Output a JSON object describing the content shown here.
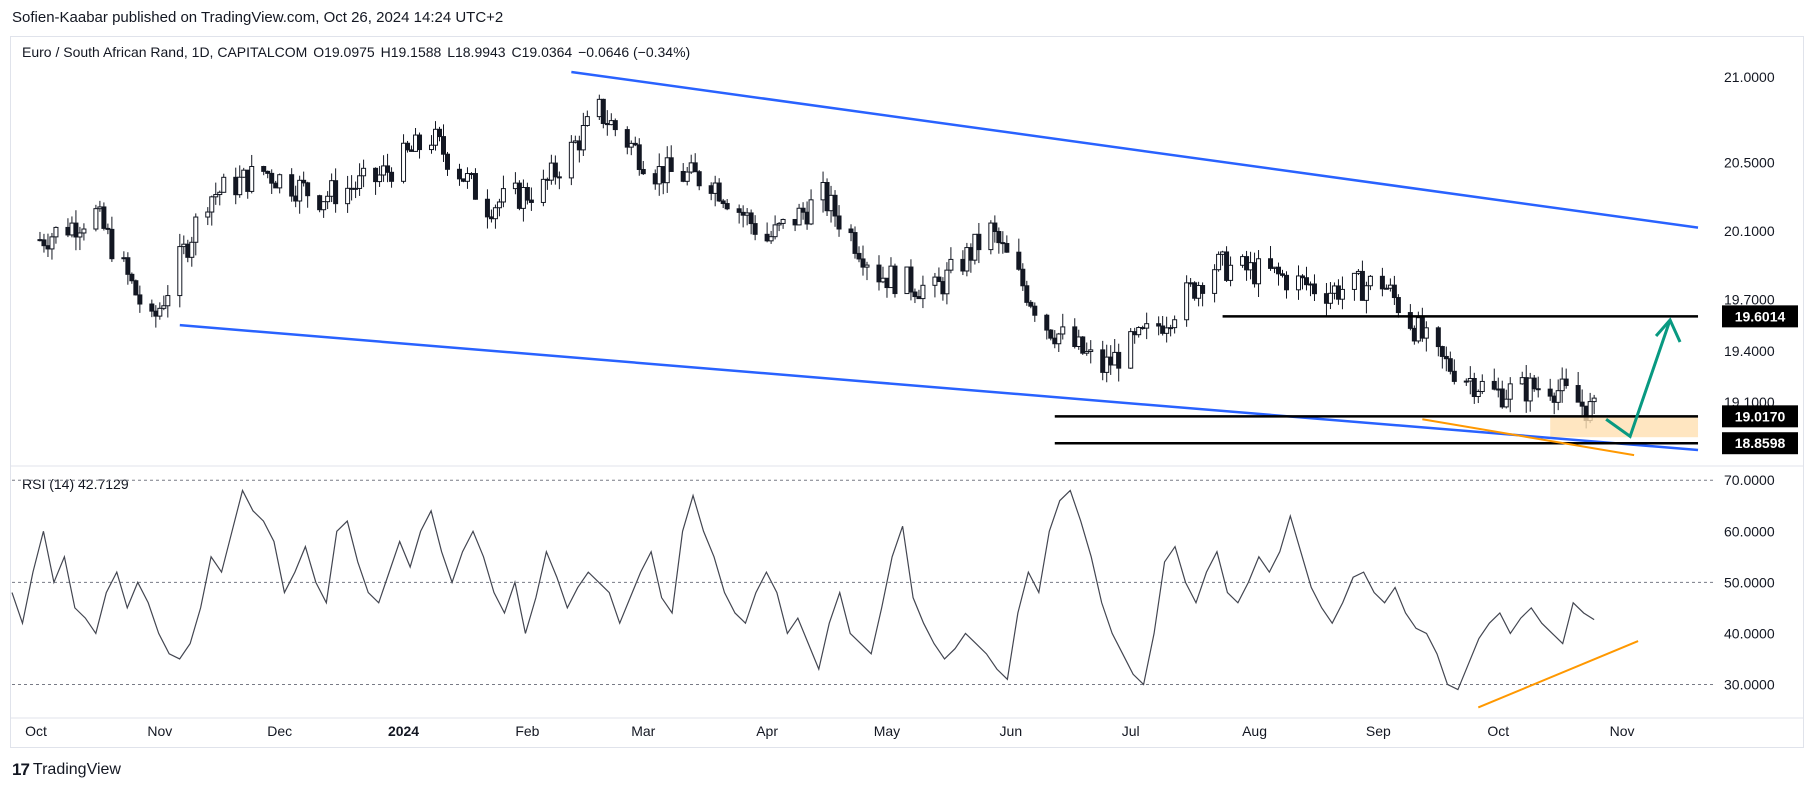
{
  "header": {
    "publisher": "Sofien-Kaabar published on TradingView.com, Oct 26, 2024 14:24 UTC+2"
  },
  "legend": {
    "symbol": "Euro / South African Rand, 1D, CAPITALCOM",
    "open": "O19.0975",
    "high": "H19.1588",
    "low": "L18.9943",
    "close": "C19.0364",
    "change": "−0.0646 (−0.34%)"
  },
  "rsi_legend": {
    "label": "RSI (14)",
    "value": "42.7129"
  },
  "footer": {
    "brand": "TradingView",
    "logo_icon": "tradingview-logo-icon"
  },
  "colors": {
    "up": "#131722",
    "down": "#131722",
    "channel": "#2962ff",
    "orange": "#ff9800",
    "arrow": "#089981",
    "zone": "#ffe0b2",
    "rsi_line": "#434651"
  },
  "chart_data": [
    {
      "type": "candlestick",
      "title": "Euro / South African Rand, 1D, CAPITALCOM",
      "x_ticks": [
        "Oct",
        "Nov",
        "Dec",
        "2024",
        "Feb",
        "Mar",
        "Apr",
        "May",
        "Jun",
        "Jul",
        "Aug",
        "Sep",
        "Oct",
        "Nov"
      ],
      "y_ticks": [
        "21.0000",
        "20.5000",
        "20.1000",
        "19.7000",
        "19.4000",
        "19.1000"
      ],
      "ylim": [
        18.75,
        21.1
      ],
      "price_labels": [
        "19.6014",
        "19.0170",
        "18.8598"
      ],
      "series": [
        {
          "name": "",
          "x": [
            "2023-10-02",
            "2023-10-16",
            "2023-10-30",
            "2023-11-13",
            "2023-11-27",
            "2023-12-11",
            "2023-12-25",
            "2024-01-08",
            "2024-01-22",
            "2024-02-05",
            "2024-02-19",
            "2024-03-04",
            "2024-03-18",
            "2024-04-01",
            "2024-04-15",
            "2024-04-29",
            "2024-05-13",
            "2024-05-27",
            "2024-06-10",
            "2024-06-24",
            "2024-07-08",
            "2024-07-22",
            "2024-08-05",
            "2024-08-19",
            "2024-09-02",
            "2024-09-16",
            "2024-09-30",
            "2024-10-14",
            "2024-10-25"
          ],
          "close": [
            20.05,
            20.2,
            19.55,
            20.3,
            20.45,
            20.3,
            20.4,
            20.65,
            20.25,
            20.35,
            20.8,
            20.45,
            20.4,
            20.05,
            20.3,
            19.85,
            19.75,
            20.1,
            19.55,
            19.3,
            19.55,
            19.9,
            19.85,
            19.75,
            19.8,
            19.35,
            19.15,
            19.2,
            19.04
          ]
        }
      ],
      "annotations": [
        {
          "type": "trendline",
          "name": "upper channel",
          "from": [
            "2024-02-12",
            21.03
          ],
          "to": [
            "2024-11-20",
            20.12
          ]
        },
        {
          "type": "trendline",
          "name": "lower channel",
          "from": [
            "2023-11-06",
            19.55
          ],
          "to": [
            "2024-11-20",
            18.82
          ]
        },
        {
          "type": "horizontal",
          "value": 19.6014,
          "from": "2024-07-24",
          "to": "2024-11-20"
        },
        {
          "type": "horizontal",
          "value": 19.017,
          "from": "2024-06-12",
          "to": "2024-11-20"
        },
        {
          "type": "horizontal",
          "value": 18.8598,
          "from": "2024-06-12",
          "to": "2024-11-20"
        }
      ]
    },
    {
      "type": "line",
      "title": "RSI (14)",
      "y_ticks": [
        "70.0000",
        "60.0000",
        "50.0000",
        "40.0000",
        "30.0000"
      ],
      "ylim": [
        25,
        72
      ],
      "levels": [
        70,
        50,
        30
      ],
      "series": [
        {
          "name": "RSI (14)",
          "values": [
            48,
            42,
            52,
            60,
            50,
            55,
            45,
            43,
            40,
            48,
            52,
            45,
            50,
            46,
            40,
            36,
            35,
            38,
            45,
            55,
            52,
            60,
            68,
            64,
            62,
            58,
            48,
            52,
            57,
            50,
            46,
            60,
            62,
            54,
            48,
            46,
            52,
            58,
            53,
            60,
            64,
            56,
            50,
            56,
            60,
            55,
            48,
            44,
            50,
            40,
            47,
            56,
            51,
            45,
            49,
            52,
            50,
            48,
            42,
            47,
            52,
            56,
            47,
            44,
            60,
            67,
            60,
            55,
            48,
            44,
            42,
            48,
            52,
            48,
            40,
            43,
            38,
            33,
            42,
            48,
            40,
            38,
            36,
            45,
            55,
            61,
            47,
            42,
            38,
            35,
            37,
            40,
            38,
            36,
            33,
            31,
            44,
            52,
            48,
            60,
            66,
            68,
            62,
            55,
            46,
            40,
            36,
            32,
            30,
            40,
            54,
            57,
            50,
            46,
            52,
            56,
            48,
            46,
            50,
            55,
            52,
            56,
            63,
            56,
            49,
            45,
            42,
            46,
            51,
            52,
            48,
            46,
            49,
            44,
            41,
            40,
            36,
            30,
            29,
            34,
            39,
            42,
            44,
            40,
            43,
            45,
            42,
            40,
            38,
            46,
            44,
            42.7
          ]
        }
      ]
    }
  ]
}
